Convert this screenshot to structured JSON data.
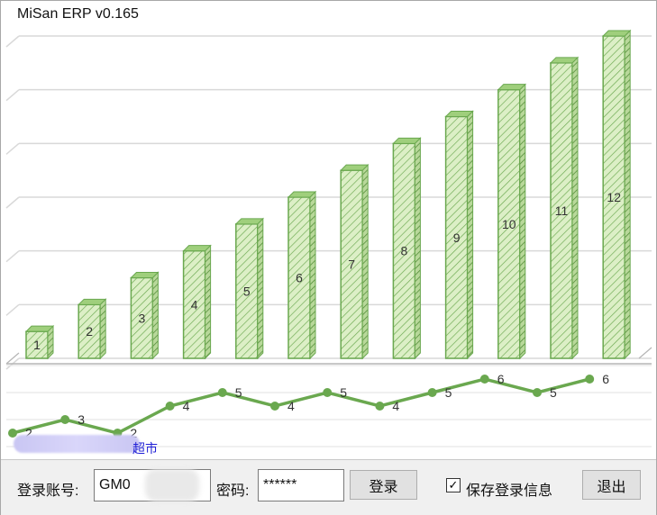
{
  "app": {
    "title": "MiSan ERP v0.165"
  },
  "colors": {
    "bar_fill": "#dcefc6",
    "bar_stroke": "#6aa84f",
    "line": "#6aa84f",
    "grid": "#d9d9d9"
  },
  "chart_data": [
    {
      "type": "bar",
      "categories": [
        "1",
        "2",
        "3",
        "4",
        "5",
        "6",
        "7",
        "8",
        "9",
        "10",
        "11",
        "12"
      ],
      "values": [
        1,
        2,
        3,
        4,
        5,
        6,
        7,
        8,
        9,
        10,
        11,
        12
      ],
      "data_labels": [
        "1",
        "2",
        "3",
        "4",
        "5",
        "6",
        "7",
        "8",
        "9",
        "10",
        "11",
        "12"
      ],
      "ylim": [
        0,
        12.5
      ],
      "grid": true
    },
    {
      "type": "line",
      "x": [
        1,
        2,
        3,
        4,
        5,
        6,
        7,
        8,
        9,
        10,
        11,
        12
      ],
      "values": [
        2,
        3,
        2,
        4,
        5,
        4,
        5,
        4,
        5,
        6,
        5,
        6
      ],
      "data_labels": [
        "2",
        "3",
        "2",
        "4",
        "5",
        "4",
        "5",
        "4",
        "5",
        "6",
        "5",
        "6"
      ],
      "ylim": [
        1,
        7
      ],
      "grid": true
    }
  ],
  "store_link": "超市",
  "login": {
    "account_label": "登录账号:",
    "account_value": "GM0",
    "password_label": "密码:",
    "password_value": "******",
    "login_button": "登录",
    "save_info_label": "保存登录信息",
    "save_info_checked": "✓",
    "exit_button": "退出"
  }
}
